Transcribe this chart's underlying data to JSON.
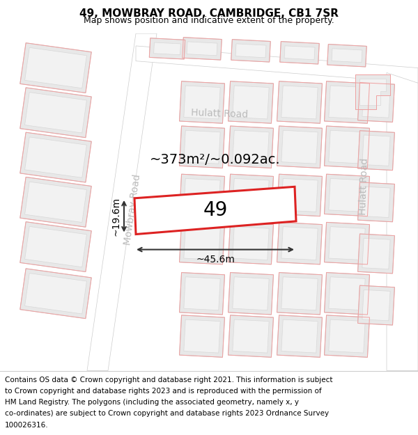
{
  "title": "49, MOWBRAY ROAD, CAMBRIDGE, CB1 7SR",
  "subtitle": "Map shows position and indicative extent of the property.",
  "footer_lines": [
    "Contains OS data © Crown copyright and database right 2021. This information is subject",
    "to Crown copyright and database rights 2023 and is reproduced with the permission of",
    "HM Land Registry. The polygons (including the associated geometry, namely x, y",
    "co-ordinates) are subject to Crown copyright and database rights 2023 Ordnance Survey",
    "100026316."
  ],
  "map_bg": "#f7f7f7",
  "road_fill": "#ffffff",
  "road_edge": "#cccccc",
  "building_outer_fill": "#e8e8e8",
  "building_outer_edge": "#cccccc",
  "building_inner_fill": "#f2f2f2",
  "building_inner_edge": "#d8d8d8",
  "cadastral_color": "#f0a0a0",
  "red_stroke": "#dd2222",
  "prop_fill": "#ffffff",
  "road_label_color": "#bbbbbb",
  "dim_color": "#333333",
  "area_label": "~373m²/~0.092ac.",
  "number_label": "49",
  "width_label": "~45.6m",
  "height_label": "~19.6m",
  "title_fontsize": 11,
  "subtitle_fontsize": 9,
  "footer_fontsize": 7.5,
  "area_fontsize": 14,
  "number_fontsize": 20,
  "dim_fontsize": 10,
  "road_label_fontsize": 10
}
